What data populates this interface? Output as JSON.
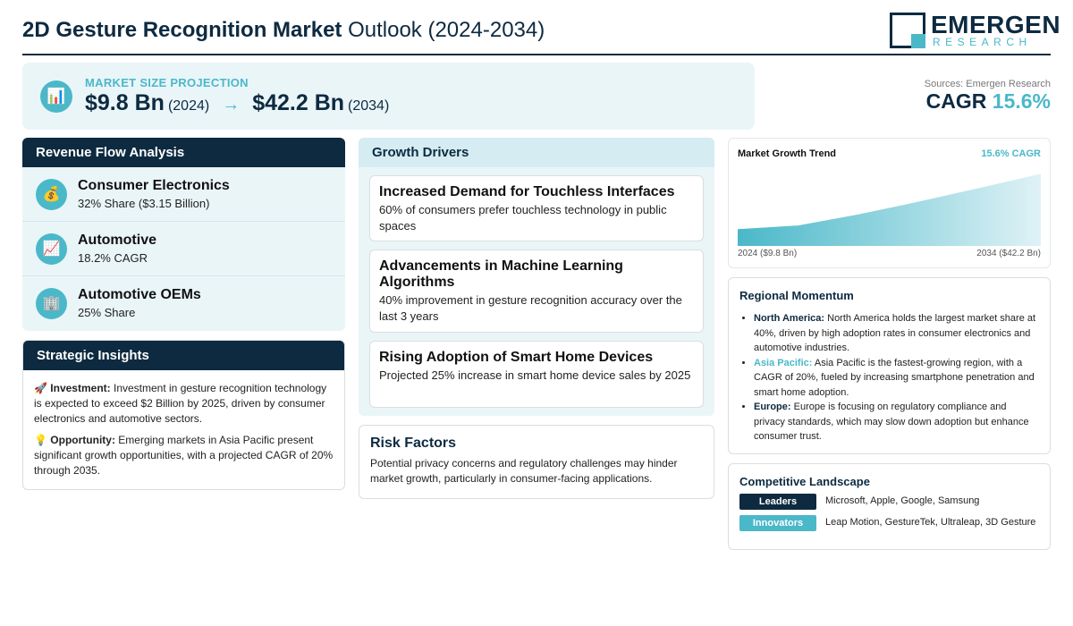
{
  "header": {
    "title_bold": "2D Gesture Recognition Market",
    "title_rest": " Outlook (2024-2034)",
    "logo_name": "EMERGEN",
    "logo_sub": "RESEARCH"
  },
  "projection": {
    "icon": "chart-icon",
    "label": "MARKET SIZE PROJECTION",
    "start_value": "$9.8 Bn",
    "start_year": "(2024)",
    "arrow": "→",
    "end_value": "$42.2 Bn",
    "end_year": "(2034)"
  },
  "summary": {
    "sources": "Sources: Emergen Research",
    "cagr_label": "CAGR",
    "cagr_value": "15.6%"
  },
  "revenue": {
    "title": "Revenue Flow Analysis",
    "items": [
      {
        "icon": "money-bag-icon",
        "glyph": "💰",
        "name": "Consumer Electronics",
        "desc": "32% Share ($3.15 Billion)"
      },
      {
        "icon": "trend-up-icon",
        "glyph": "📈",
        "name": "Automotive",
        "desc": "18.2% CAGR"
      },
      {
        "icon": "building-icon",
        "glyph": "🏢",
        "name": "Automotive OEMs",
        "desc": "25% Share"
      }
    ]
  },
  "insights": {
    "title": "Strategic Insights",
    "items": [
      {
        "icon": "rocket-icon",
        "glyph": "🚀",
        "label": "Investment:",
        "text": " Investment in gesture recognition technology is expected to exceed $2 Billion by 2025, driven by consumer electronics and automotive sectors."
      },
      {
        "icon": "lightbulb-icon",
        "glyph": "💡",
        "label": "Opportunity:",
        "text": " Emerging markets in Asia Pacific present significant growth opportunities, with a projected CAGR of 20% through 2035."
      }
    ]
  },
  "drivers": {
    "title": "Growth Drivers",
    "items": [
      {
        "title": "Increased Demand for Touchless Interfaces",
        "desc": "60% of consumers prefer touchless technology in public spaces"
      },
      {
        "title": "Advancements in Machine Learning Algorithms",
        "desc": "40% improvement in gesture recognition accuracy over the last 3 years"
      },
      {
        "title": "Rising Adoption of Smart Home Devices",
        "desc": "Projected 25% increase in smart home device sales by 2025"
      }
    ]
  },
  "risk": {
    "title": "Risk Factors",
    "desc": "Potential privacy concerns and regulatory challenges may hinder market growth, particularly in consumer-facing applications."
  },
  "chart_data": {
    "type": "area",
    "title": "Market Growth Trend",
    "annotation": "15.6% CAGR",
    "x_start_label": "2024 ($9.8 Bn)",
    "x_end_label": "2034 ($42.2 Bn)",
    "x": [
      2024,
      2026,
      2028,
      2030,
      2032,
      2034
    ],
    "values": [
      9.8,
      12,
      18.5,
      26,
      34,
      42.2
    ],
    "ylim": [
      0,
      45
    ],
    "color": "#4ab8c9"
  },
  "regional": {
    "title": "Regional Momentum",
    "items": [
      {
        "name": "North America:",
        "color": "#0d2a40",
        "text": " North America holds the largest market share at 40%, driven by high adoption rates in consumer electronics and automotive industries."
      },
      {
        "name": "Asia Pacific:",
        "color": "#4ab8c9",
        "text": " Asia Pacific is the fastest-growing region, with a CAGR of 20%, fueled by increasing smartphone penetration and smart home adoption."
      },
      {
        "name": "Europe:",
        "color": "#0d2a40",
        "text": " Europe is focusing on regulatory compliance and privacy standards, which may slow down adoption but enhance consumer trust."
      }
    ]
  },
  "competitive": {
    "title": "Competitive Landscape",
    "rows": [
      {
        "badge": "Leaders",
        "color": "#0d2a40",
        "names": "Microsoft, Apple, Google, Samsung"
      },
      {
        "badge": "Innovators",
        "color": "#4ab8c9",
        "names": "Leap Motion, GestureTek, Ultraleap, 3D Gesture"
      }
    ]
  }
}
